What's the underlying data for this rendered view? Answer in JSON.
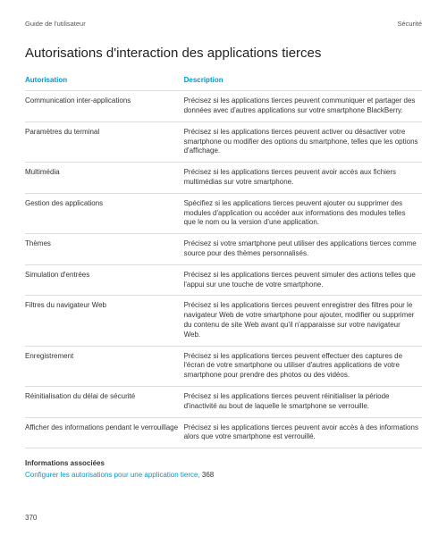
{
  "colors": {
    "accent": "#0099cc",
    "rule": "#d7dde0",
    "text": "#333333",
    "muted": "#555555"
  },
  "header": {
    "left": "Guide de l'utilisateur",
    "right": "Sécurité"
  },
  "title": "Autorisations d'interaction des applications tierces",
  "table": {
    "columns": [
      "Autorisation",
      "Description"
    ],
    "rows": [
      {
        "auth": "Communication inter-applications",
        "desc": "Précisez si les applications tierces peuvent communiquer et partager des données avec d'autres applications sur votre smartphone BlackBerry."
      },
      {
        "auth": "Paramètres du terminal",
        "desc": "Précisez si les applications tierces peuvent activer ou désactiver votre smartphone ou modifier des options du smartphone, telles que les options d'affichage."
      },
      {
        "auth": "Multimédia",
        "desc": "Précisez si les applications tierces peuvent avoir accès aux fichiers multimédias sur votre smartphone."
      },
      {
        "auth": "Gestion des applications",
        "desc": "Spécifiez si les applications tierces peuvent ajouter ou supprimer des modules d'application ou accéder aux informations des modules telles que le nom ou la version d'une application."
      },
      {
        "auth": "Thèmes",
        "desc": "Précisez si votre smartphone peut utiliser des applications tierces comme source pour des thèmes personnalisés."
      },
      {
        "auth": "Simulation d'entrées",
        "desc": "Précisez si les applications tierces peuvent simuler des actions telles que l'appui sur une touche de votre smartphone."
      },
      {
        "auth": "Filtres du navigateur Web",
        "desc": "Précisez si les applications tierces peuvent enregistrer des filtres pour le navigateur Web de votre smartphone pour ajouter, modifier ou supprimer du contenu de site Web avant qu'il n'apparaisse sur votre navigateur Web."
      },
      {
        "auth": "Enregistrement",
        "desc": "Précisez si les applications tierces peuvent effectuer des captures de l'écran de votre smartphone ou utiliser d'autres applications de votre smartphone pour prendre des photos ou des vidéos."
      },
      {
        "auth": "Réinitialisation du délai de sécurité",
        "desc": "Précisez si les applications tierces peuvent réinitialiser la période d'inactivité au bout de laquelle le smartphone se verrouille."
      },
      {
        "auth": "Afficher des informations pendant le verrouillage",
        "desc": "Précisez si les applications tierces peuvent avoir accès à des informations alors que votre smartphone est verrouillé."
      }
    ]
  },
  "related": {
    "heading": "Informations associées",
    "link_text": "Configurer les autorisations pour une application tierce,",
    "link_page": "368"
  },
  "page_number": "370"
}
